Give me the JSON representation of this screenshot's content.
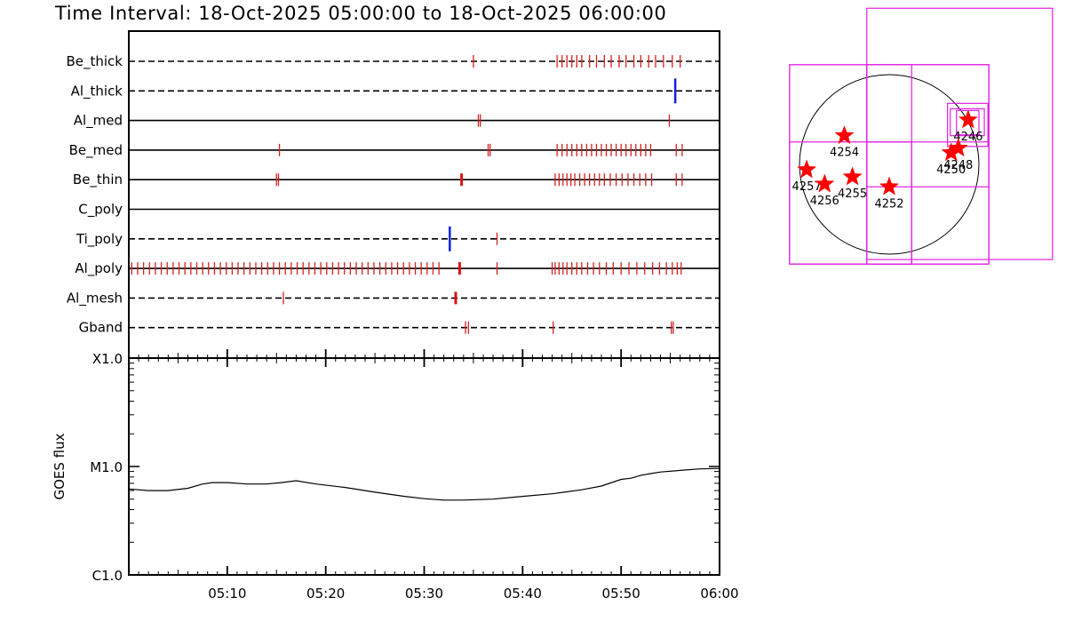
{
  "title": "Time Interval: 18-Oct-2025 05:00:00 to 18-Oct-2025 06:00:00",
  "chart_data": [
    {
      "type": "timeline",
      "x_unit": "minutes after 05:00",
      "xlim": [
        0,
        60
      ],
      "rows": [
        {
          "label": "Be_thick",
          "line": "dashed",
          "events": [
            35,
            43.5,
            44,
            44.5,
            45,
            45.5,
            46,
            46.8,
            47.5,
            48.3,
            49,
            49.8,
            50.5,
            51.3,
            52,
            52.8,
            53.5,
            54.3,
            55.2,
            56
          ],
          "blue": [],
          "thick": []
        },
        {
          "label": "Al_thick",
          "line": "dashed",
          "events": [],
          "blue": [
            55.5
          ],
          "thick": []
        },
        {
          "label": "Al_med",
          "line": "solid",
          "events": [
            35.5,
            35.7,
            54.9
          ],
          "blue": [],
          "thick": []
        },
        {
          "label": "Be_med",
          "line": "solid",
          "events": [
            15.3,
            36.5,
            36.7,
            43.5,
            44,
            44.5,
            45,
            45.5,
            46,
            46.5,
            47,
            47.5,
            48,
            48.5,
            49,
            49.5,
            50,
            50.5,
            51,
            51.5,
            52,
            52.5,
            53,
            55.6,
            56.2
          ],
          "blue": [],
          "thick": []
        },
        {
          "label": "Be_thin",
          "line": "solid",
          "events": [
            15.0,
            15.2,
            43.3,
            43.7,
            44.1,
            44.5,
            44.9,
            45.3,
            45.8,
            46.3,
            46.8,
            47.3,
            47.8,
            48.3,
            48.9,
            49.5,
            50.1,
            50.7,
            51.3,
            51.9,
            52.5,
            53.1,
            55.6,
            56.2
          ],
          "blue": [],
          "thick": [
            33.8
          ]
        },
        {
          "label": "C_poly",
          "line": "solid",
          "events": [],
          "blue": [],
          "thick": []
        },
        {
          "label": "Ti_poly",
          "line": "dashed",
          "events": [
            37.4
          ],
          "blue": [
            32.6
          ],
          "thick": []
        },
        {
          "label": "Al_poly",
          "line": "solid",
          "events": [
            0.3,
            0.9,
            1.5,
            2.1,
            2.7,
            3.3,
            3.9,
            4.5,
            5.1,
            5.7,
            6.3,
            6.9,
            7.5,
            8.1,
            8.7,
            9.3,
            9.9,
            10.5,
            11.1,
            11.7,
            12.3,
            12.9,
            13.5,
            14.1,
            14.7,
            15.3,
            15.9,
            16.5,
            17.1,
            17.7,
            18.3,
            18.9,
            19.5,
            20.1,
            20.7,
            21.3,
            21.9,
            22.5,
            23.1,
            23.7,
            24.3,
            24.9,
            25.5,
            26.1,
            26.7,
            27.3,
            27.9,
            28.5,
            29.1,
            29.7,
            30.3,
            30.9,
            31.5,
            37.4,
            43.0,
            43.3,
            43.7,
            44.1,
            44.5,
            45.0,
            45.5,
            46.0,
            46.6,
            47.2,
            47.8,
            48.5,
            49.2,
            50.0,
            50.8,
            51.6,
            52.4,
            53.2,
            53.9,
            54.6,
            55.2,
            55.7,
            56.1
          ],
          "blue": [],
          "thick": [
            33.6
          ]
        },
        {
          "label": "Al_mesh",
          "line": "dashed",
          "events": [
            15.7
          ],
          "blue": [],
          "thick": [
            33.2
          ]
        },
        {
          "label": "Gband",
          "line": "dashed",
          "events": [
            34.2,
            34.5,
            43.1,
            55.1,
            55.3
          ],
          "blue": [],
          "thick": []
        }
      ],
      "xtick_minutes": [
        10,
        20,
        30,
        40,
        50,
        60
      ]
    },
    {
      "type": "line",
      "ylabel": "GOES flux",
      "yscale": "log",
      "ylim": [
        1e-06,
        0.0001
      ],
      "ytick_values": [
        1e-06,
        1e-05,
        0.0001
      ],
      "ytick_labels": [
        "C1.0",
        "M1.0",
        "X1.0"
      ],
      "xlim": [
        0,
        60
      ],
      "xtick_minutes": [
        10,
        20,
        30,
        40,
        50,
        60
      ],
      "xtick_labels": [
        "05:10",
        "05:20",
        "05:30",
        "05:40",
        "05:50",
        "06:00"
      ],
      "x": [
        0,
        2,
        4,
        6,
        7.5,
        8.5,
        10,
        12,
        14,
        15.5,
        17,
        19,
        22,
        25,
        28,
        30,
        32,
        34,
        37,
        40,
        43,
        46,
        48,
        50,
        51,
        52,
        53,
        54,
        56,
        58,
        60
      ],
      "y": [
        6.2e-06,
        6e-06,
        6e-06,
        6.3e-06,
        6.9e-06,
        7.1e-06,
        7.1e-06,
        6.9e-06,
        6.9e-06,
        7.1e-06,
        7.4e-06,
        6.9e-06,
        6.4e-06,
        5.8e-06,
        5.3e-06,
        5.05e-06,
        4.9e-06,
        4.9e-06,
        5e-06,
        5.3e-06,
        5.6e-06,
        6.1e-06,
        6.6e-06,
        7.6e-06,
        7.8e-06,
        8.3e-06,
        8.6e-06,
        8.9e-06,
        9.2e-06,
        9.5e-06,
        9.6e-06
      ]
    },
    {
      "type": "scatter",
      "xlim": [
        -1100,
        1100
      ],
      "ylim": [
        -1100,
        1100
      ],
      "points": [
        {
          "label": "4246",
          "x": 880,
          "y": 495
        },
        {
          "label": "4248",
          "x": 770,
          "y": 180
        },
        {
          "label": "4250",
          "x": 690,
          "y": 130
        },
        {
          "label": "4254",
          "x": -500,
          "y": 320
        },
        {
          "label": "4257",
          "x": -920,
          "y": -60
        },
        {
          "label": "4255",
          "x": -410,
          "y": -140
        },
        {
          "label": "4256",
          "x": -720,
          "y": -220
        },
        {
          "label": "4252",
          "x": 0,
          "y": -250
        }
      ],
      "boxes": [
        {
          "x0": -1110,
          "x1": 1110,
          "y0": -1110,
          "y1": 1110
        },
        {
          "x0": -250,
          "x1": 1110,
          "y0": -1110,
          "y1": 1110
        },
        {
          "x0": -1110,
          "x1": 250,
          "y0": -1110,
          "y1": 1110
        },
        {
          "x0": -1110,
          "x1": 1110,
          "y0": -1110,
          "y1": 250
        },
        {
          "x0": -250,
          "x1": 250,
          "y0": -1110,
          "y1": 250
        },
        {
          "x0": -250,
          "x1": 1110,
          "y0": -250,
          "y1": 1110
        },
        {
          "x0": 750,
          "x1": 1000,
          "y0": 330,
          "y1": 600
        },
        {
          "x0": 680,
          "x1": 1060,
          "y0": 320,
          "y1": 620
        },
        {
          "x0": 650,
          "x1": 1100,
          "y0": 200,
          "y1": 680
        },
        {
          "x0": -250,
          "x1": 1820,
          "y0": -1060,
          "y1": 1740
        }
      ]
    }
  ]
}
